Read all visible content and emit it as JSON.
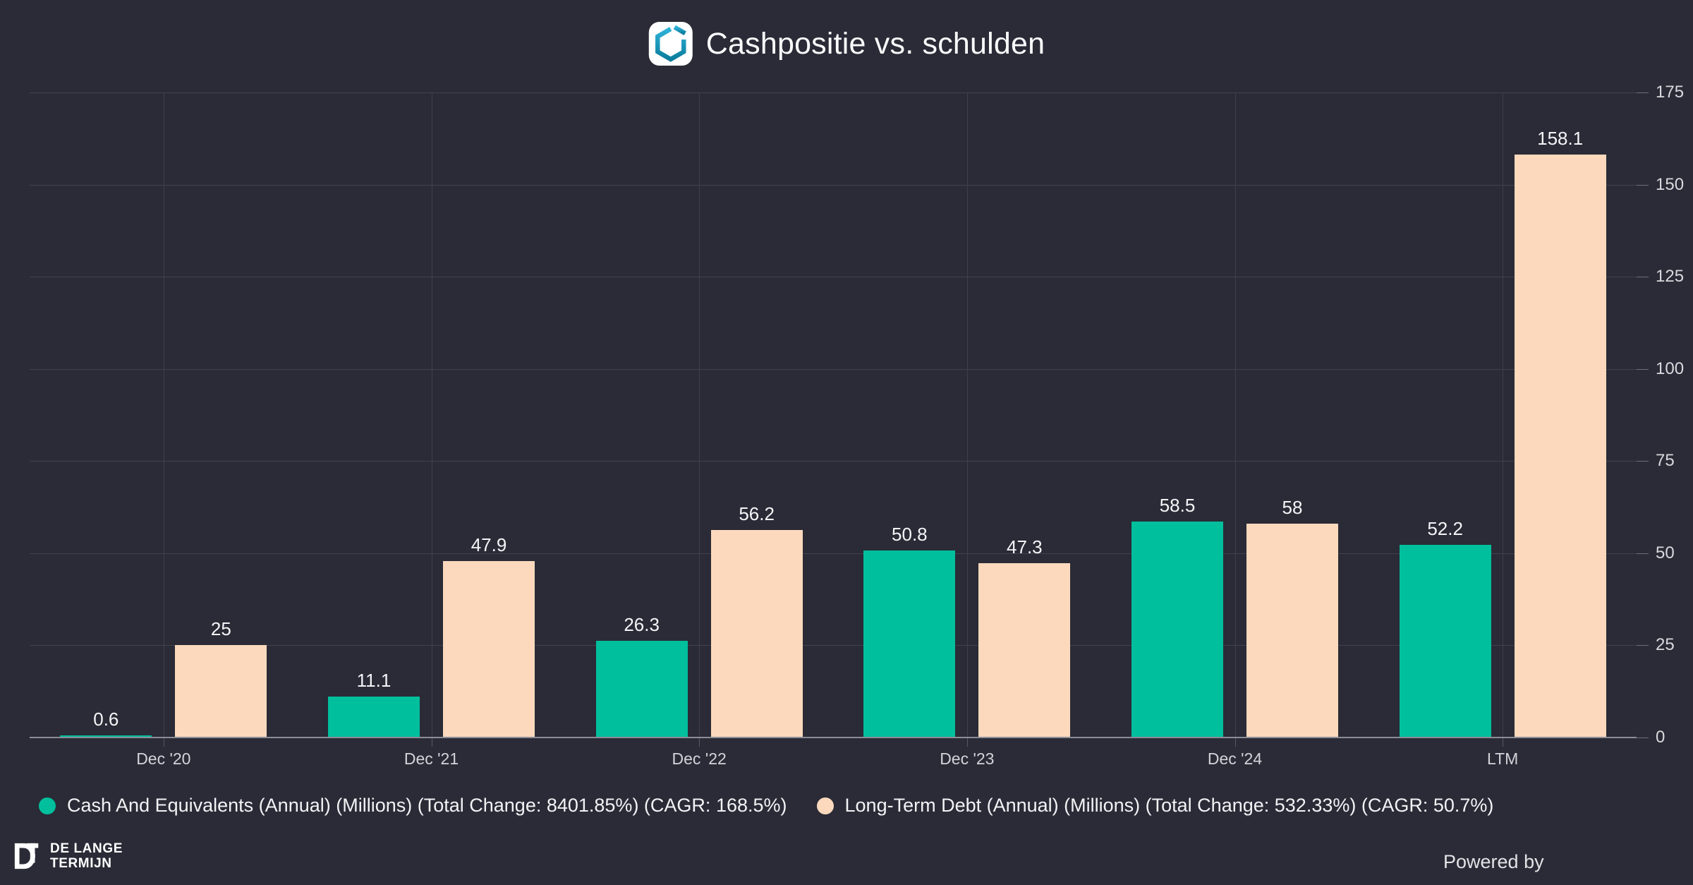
{
  "title": "Cashpositie vs. schulden",
  "branding": {
    "footer_line1": "DE LANGE",
    "footer_line2": "TERMIJN",
    "powered_by": "Powered by"
  },
  "colors": {
    "background": "#2a2b36",
    "cash": "#00bf9d",
    "debt": "#fcd9bd",
    "grid": "#3d3f4a",
    "axis_line": "#8b8d97",
    "title_text": "#fafbfc",
    "icon_teal": "#1593b4"
  },
  "chart_data": {
    "type": "bar",
    "title": "Cashpositie vs. schulden",
    "categories": [
      "Dec '20",
      "Dec '21",
      "Dec '22",
      "Dec '23",
      "Dec '24",
      "LTM"
    ],
    "series": [
      {
        "name": "Cash And Equivalents (Annual) (Millions) (Total Change: 8401.85%) (CAGR: 168.5%)",
        "color": "#00bf9d",
        "values": [
          0.6,
          11.1,
          26.3,
          50.8,
          58.5,
          52.2
        ],
        "labels": [
          "0.6",
          "11.1",
          "26.3",
          "50.8",
          "58.5",
          "52.2"
        ]
      },
      {
        "name": "Long-Term Debt (Annual) (Millions) (Total Change: 532.33%) (CAGR: 50.7%)",
        "color": "#fcd9bd",
        "values": [
          25,
          47.9,
          56.2,
          47.3,
          58,
          158.1
        ],
        "labels": [
          "25",
          "47.9",
          "56.2",
          "47.3",
          "58",
          "158.1"
        ]
      }
    ],
    "ylim": [
      0,
      175
    ],
    "yticks": [
      0,
      25,
      50,
      75,
      100,
      125,
      150,
      175
    ],
    "xlabel": "",
    "ylabel": "",
    "y_axis_side": "right",
    "grid": true,
    "legend_position": "bottom-left"
  }
}
